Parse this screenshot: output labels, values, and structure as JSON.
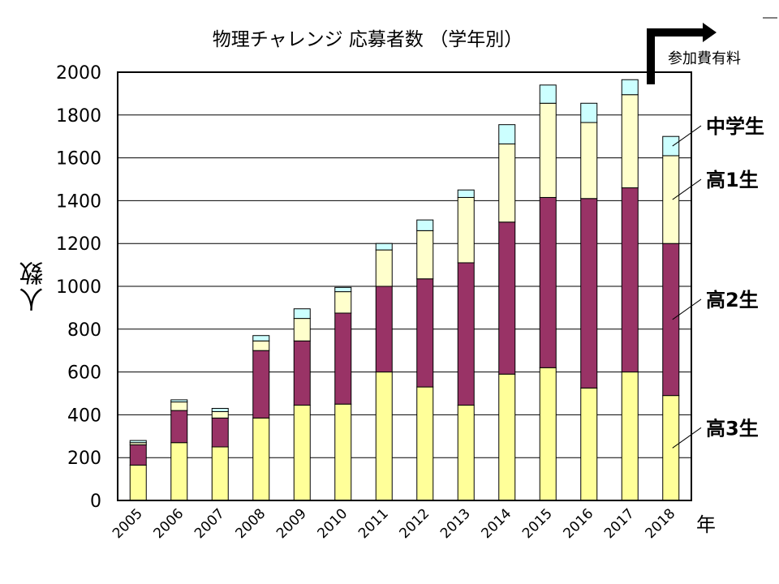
{
  "chart_data": {
    "type": "bar",
    "stacked": true,
    "title": "物理チャレンジ 応募者数 （学年別）",
    "ylabel": "人数",
    "xunit": "年",
    "ylim": [
      0,
      2000
    ],
    "yticks": [
      0,
      200,
      400,
      600,
      800,
      1000,
      1200,
      1400,
      1600,
      1800,
      2000
    ],
    "grid": true,
    "legend_placement": "right, labels beside the 2018 bar",
    "categories": [
      "2005",
      "2006",
      "2007",
      "2008",
      "2009",
      "2010",
      "2011",
      "2012",
      "2013",
      "2014",
      "2015",
      "2016",
      "2017",
      "2018"
    ],
    "series": [
      {
        "name": "高3生",
        "color": "#FFFF99",
        "values": [
          165,
          270,
          250,
          385,
          445,
          450,
          600,
          530,
          445,
          590,
          620,
          525,
          600,
          490
        ]
      },
      {
        "name": "高2生",
        "color": "#993366",
        "values": [
          95,
          150,
          135,
          315,
          300,
          425,
          400,
          505,
          665,
          710,
          795,
          885,
          860,
          710
        ]
      },
      {
        "name": "高1生",
        "color": "#FFFFCC",
        "values": [
          10,
          40,
          30,
          45,
          105,
          100,
          170,
          225,
          305,
          365,
          440,
          355,
          435,
          410
        ]
      },
      {
        "name": "中学生",
        "color": "#CCFFFF",
        "values": [
          10,
          10,
          15,
          25,
          45,
          20,
          30,
          50,
          35,
          90,
          85,
          90,
          70,
          90
        ]
      }
    ],
    "annotation": "参加費有料"
  }
}
